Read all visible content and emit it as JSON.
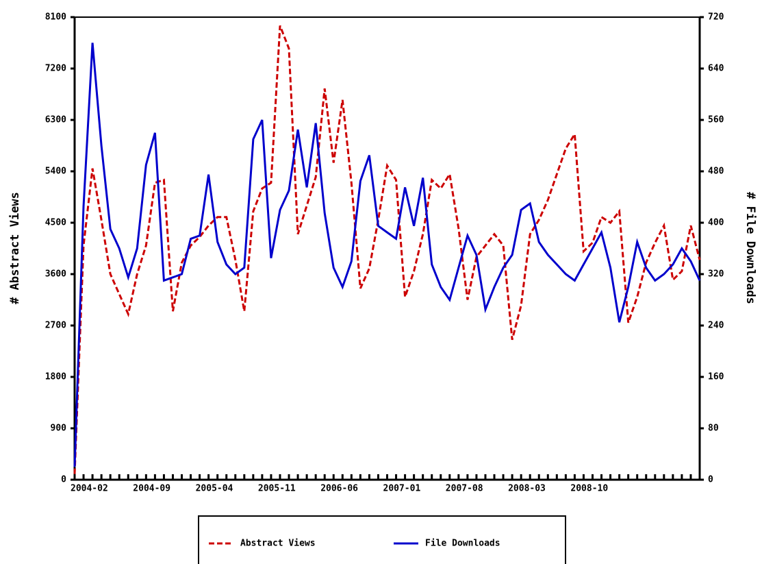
{
  "chart_data": {
    "type": "line",
    "categories": [
      "2004-02",
      null,
      null,
      null,
      null,
      null,
      null,
      "2004-09",
      null,
      null,
      null,
      null,
      null,
      null,
      "2005-04",
      null,
      null,
      null,
      null,
      null,
      null,
      "2005-11",
      null,
      null,
      null,
      null,
      null,
      null,
      "2006-06",
      null,
      null,
      null,
      null,
      null,
      null,
      "2007-01",
      null,
      null,
      null,
      null,
      null,
      null,
      "2007-08",
      null,
      null,
      null,
      null,
      null,
      null,
      "2008-03",
      null,
      null,
      null,
      null,
      null,
      null,
      "2008-10",
      null,
      null,
      null,
      null,
      null,
      null,
      null,
      null,
      null,
      null,
      null,
      null,
      null,
      null
    ],
    "ylabel": "# Abstract Views",
    "y2label": "# File Downloads",
    "ylim": [
      0,
      8100
    ],
    "yticks": [
      0,
      900,
      1800,
      2700,
      3600,
      4500,
      5400,
      6300,
      7200,
      8100
    ],
    "y2lim": [
      0,
      720
    ],
    "y2ticks": [
      0,
      80,
      160,
      240,
      320,
      400,
      480,
      560,
      640,
      720
    ],
    "legend": "bottom",
    "series": [
      {
        "name": "Abstract Views",
        "color": "#cc0000",
        "dashed": true,
        "values": [
          100,
          4100,
          5450,
          4550,
          3600,
          3250,
          2900,
          3600,
          4100,
          5200,
          5250,
          2950,
          3800,
          4100,
          4250,
          4450,
          4600,
          4600,
          3850,
          2950,
          4700,
          5100,
          5200,
          7950,
          7550,
          4300,
          4800,
          5300,
          6850,
          5550,
          6650,
          5200,
          3350,
          3700,
          4550,
          5500,
          5250,
          3200,
          3650,
          4300,
          5250,
          5100,
          5350,
          4400,
          3150,
          3900,
          4100,
          4300,
          4100,
          2450,
          3050,
          4300,
          4550,
          4900,
          5350,
          5800,
          6050,
          4000,
          4150,
          4600,
          4500,
          4700,
          2750,
          3200,
          3800,
          4150,
          4450,
          3500,
          3650,
          4450,
          3850
        ]
      },
      {
        "name": "File Downloads",
        "color": "#0000cc",
        "axis": "y2",
        "values": [
          20,
          425,
          680,
          520,
          390,
          360,
          315,
          360,
          490,
          540,
          310,
          315,
          320,
          375,
          380,
          475,
          370,
          335,
          320,
          330,
          530,
          560,
          345,
          420,
          450,
          545,
          455,
          555,
          415,
          330,
          300,
          340,
          465,
          505,
          395,
          385,
          375,
          455,
          395,
          470,
          335,
          300,
          280,
          330,
          380,
          350,
          265,
          300,
          330,
          350,
          420,
          430,
          370,
          350,
          335,
          320,
          310,
          335,
          360,
          385,
          330,
          245,
          300,
          370,
          330,
          310,
          320,
          335,
          360,
          340,
          310
        ]
      }
    ]
  }
}
